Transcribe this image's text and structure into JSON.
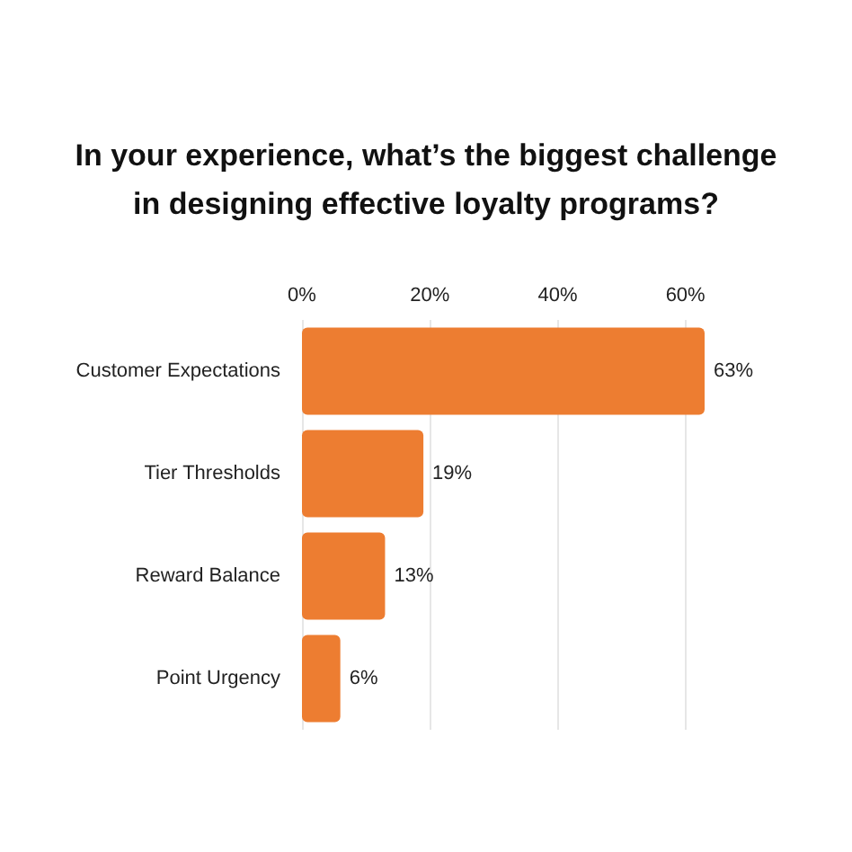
{
  "chart_data": {
    "type": "bar",
    "orientation": "horizontal",
    "title": "In your experience, what’s the biggest challenge\nin designing effective loyalty programs?",
    "categories": [
      "Customer Expectations",
      "Tier Thresholds",
      "Reward Balance",
      "Point Urgency"
    ],
    "values": [
      63,
      19,
      13,
      6
    ],
    "value_labels": [
      "63%",
      "19%",
      "13%",
      "6%"
    ],
    "color": "#ed7d31",
    "xlim": [
      0,
      63
    ],
    "xticks": [
      {
        "value": 0,
        "label": "0%"
      },
      {
        "value": 20,
        "label": "20%"
      },
      {
        "value": 40,
        "label": "40%"
      },
      {
        "value": 60,
        "label": "60%"
      }
    ],
    "grid": "x"
  }
}
